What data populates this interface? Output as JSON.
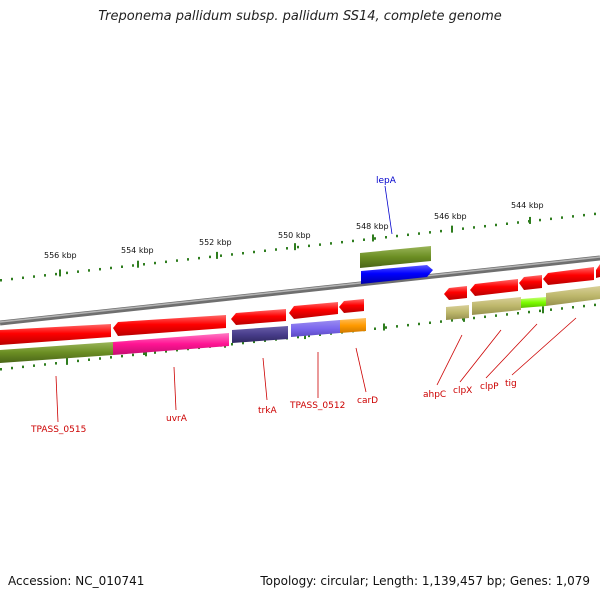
{
  "title": "Treponema pallidum subsp. pallidum SS14, complete genome",
  "footer": {
    "accession": "Accession: NC_010741",
    "stats": "Topology: circular; Length: 1,139,457 bp; Genes: 1,079"
  },
  "scale_labels": [
    "556 kbp",
    "554 kbp",
    "552 kbp",
    "550 kbp",
    "548 kbp",
    "546 kbp",
    "544 kbp"
  ],
  "gene_labels": {
    "lepA": "lepA",
    "TPASS_0515": "TPASS_0515",
    "uvrA": "uvrA",
    "trkA": "trkA",
    "TPASS_0512": "TPASS_0512",
    "carD": "carD",
    "ahpC": "ahpC",
    "clpX": "clpX",
    "clpP": "clpP",
    "tig": "tig"
  },
  "colors": {
    "forward_label": "#0000cc",
    "reverse_label": "#cc0000",
    "tick": "#2e7d1e",
    "backbone": "#8a8a8a"
  }
}
